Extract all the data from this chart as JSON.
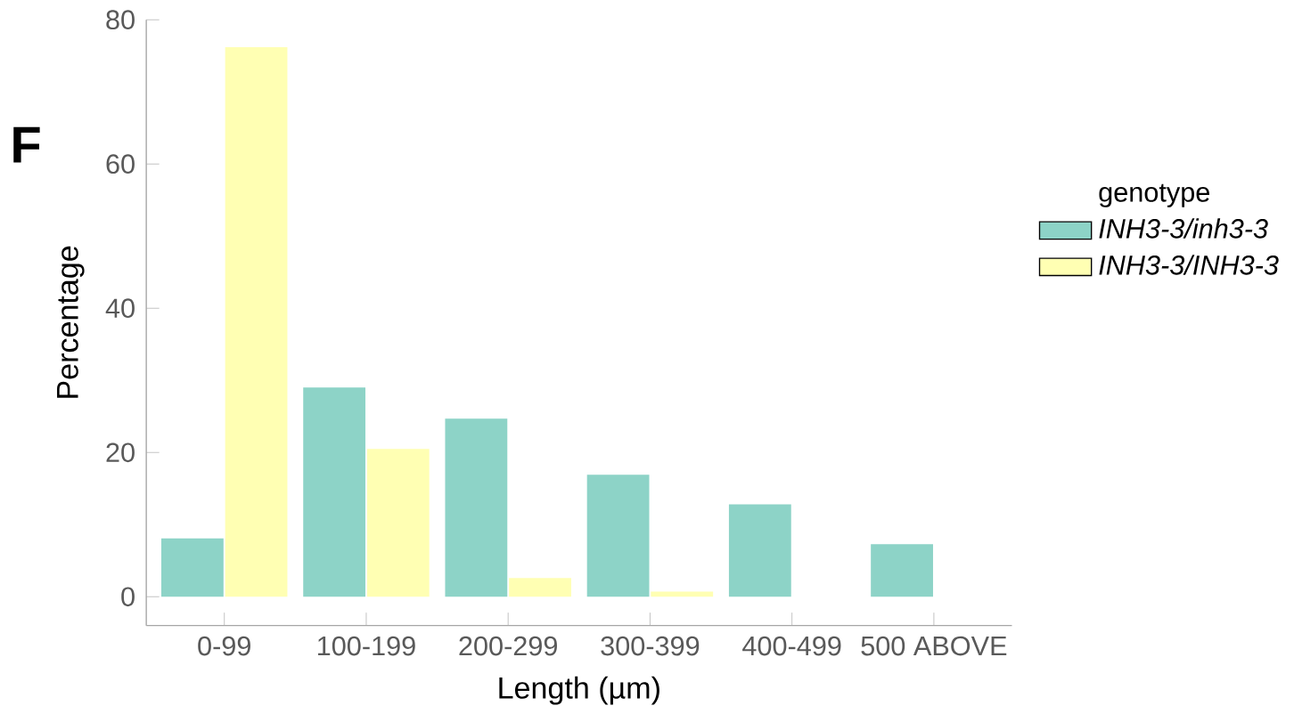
{
  "chart_data": {
    "type": "bar",
    "title": "F",
    "xlabel": "Length (µm)",
    "ylabel": "Percentage",
    "legend_title": "genotype",
    "categories": [
      "0-99",
      "100-199",
      "200-299",
      "300-399",
      "400-499",
      "500 ABOVE"
    ],
    "series": [
      {
        "name": "*INH3-3/inh3-3*",
        "color": "#8dd3c7",
        "values": [
          8.1,
          29.0,
          24.7,
          16.9,
          12.8,
          7.3
        ]
      },
      {
        "name": "*INH3-3/INH3-3*",
        "color": "#ffffb3",
        "values": [
          76.2,
          20.5,
          2.6,
          0.7,
          0,
          0
        ]
      }
    ],
    "ylim": [
      -4,
      80
    ],
    "yticks": [
      0,
      20,
      40,
      60,
      80
    ],
    "grid": false,
    "legend": "right"
  }
}
